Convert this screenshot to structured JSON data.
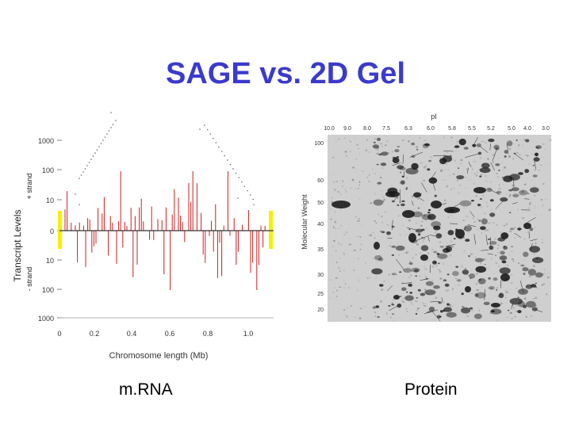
{
  "slide": {
    "title": "SAGE vs. 2D Gel",
    "title_color": "#3a3acd",
    "captions": {
      "left": "m.RNA",
      "right": "Protein"
    }
  },
  "sage_plot": {
    "y_axis_title": "Transcript Levels",
    "top_strand_label": "+ strand",
    "bottom_strand_label": "- strand",
    "y_tick_labels": [
      "1000",
      "100",
      "10",
      "0",
      "10",
      "100",
      "1000"
    ],
    "x_tick_labels": [
      "0",
      "0.2",
      "0.4",
      "0.6",
      "0.8",
      "1.0"
    ],
    "x_axis_title": "Chromosome length (Mb)",
    "bar_color": "#cc1f1f",
    "highlight_color": "#f2f200"
  },
  "gel": {
    "pi_title": "pI",
    "pi_labels": [
      "10.0",
      "9.0",
      "8.0",
      "7.5",
      "6.3",
      "6.0",
      "5.8",
      "5.5",
      "5.2",
      "5.0",
      "4.0",
      "3.0"
    ],
    "mw_title": "Molecular Weight",
    "mw_labels": [
      "100",
      "60",
      "50",
      "40",
      "35",
      "30",
      "25",
      "20"
    ]
  }
}
